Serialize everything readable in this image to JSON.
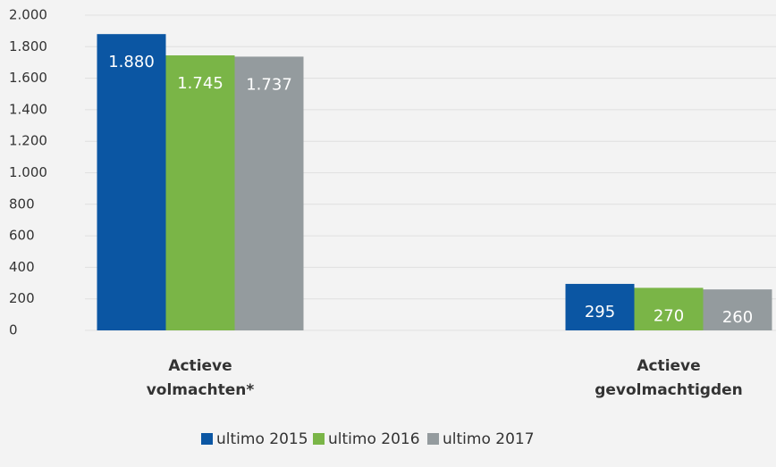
{
  "chart_data": {
    "type": "bar",
    "categories": [
      "Actieve volmachten*",
      "Actieve gevolmachtigden"
    ],
    "series": [
      {
        "name": "ultimo 2015",
        "color": "#0b56a3",
        "values": [
          1880,
          295
        ],
        "value_labels": [
          "1.880",
          "295"
        ]
      },
      {
        "name": "ultimo 2016",
        "color": "#7ab547",
        "values": [
          1745,
          270
        ],
        "value_labels": [
          "1.745",
          "270"
        ]
      },
      {
        "name": "ultimo 2017",
        "color": "#949b9e",
        "values": [
          1737,
          260
        ],
        "value_labels": [
          "1.737",
          "260"
        ]
      }
    ],
    "ylim": [
      0,
      2000
    ],
    "yticks": [
      0,
      200,
      400,
      600,
      800,
      {
        "value": 1000,
        "label": "1.000"
      },
      {
        "value": 1200,
        "label": "1.200"
      },
      {
        "value": 1400,
        "label": "1.400"
      },
      {
        "value": 1600,
        "label": "1.600"
      },
      {
        "value": 1800,
        "label": "1.800"
      },
      {
        "value": 2000,
        "label": "2.000"
      }
    ],
    "grid": true,
    "legend": "bottom"
  }
}
